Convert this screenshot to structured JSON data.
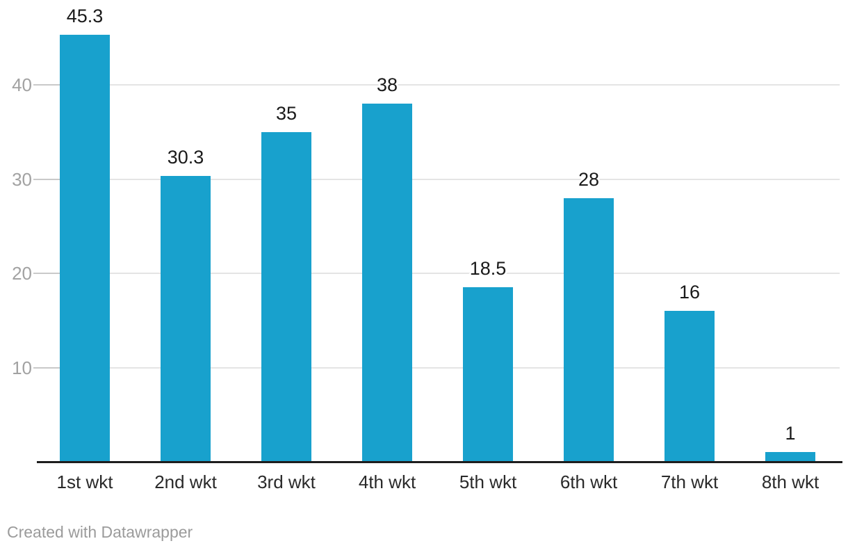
{
  "chart_data": {
    "type": "bar",
    "title": "",
    "xlabel": "",
    "ylabel": "",
    "categories": [
      "1st wkt",
      "2nd wkt",
      "3rd wkt",
      "4th wkt",
      "5th wkt",
      "6th wkt",
      "7th wkt",
      "8th wkt"
    ],
    "values": [
      45.3,
      30.3,
      35,
      38,
      18.5,
      28,
      16,
      1
    ],
    "value_labels": [
      "45.3",
      "30.3",
      "35",
      "38",
      "18.5",
      "28",
      "16",
      "1"
    ],
    "yticks": [
      10,
      20,
      30,
      40
    ],
    "ylim": [
      0,
      47
    ],
    "grid": "horizontal",
    "legend": "none",
    "bar_color": "#18a1cd"
  },
  "colors": {
    "background": "#ffffff",
    "bar": "#18a1cd",
    "gridline": "#e4e4e4",
    "tick": "#c9c9c9",
    "axis_baseline": "#1d1d1d",
    "value_label": "#1a1a1a",
    "category_label": "#2a2a2a",
    "y_axis_label": "#a2a2a2",
    "credit": "#9b9b9b"
  },
  "footer": {
    "credit": "Created with Datawrapper"
  }
}
